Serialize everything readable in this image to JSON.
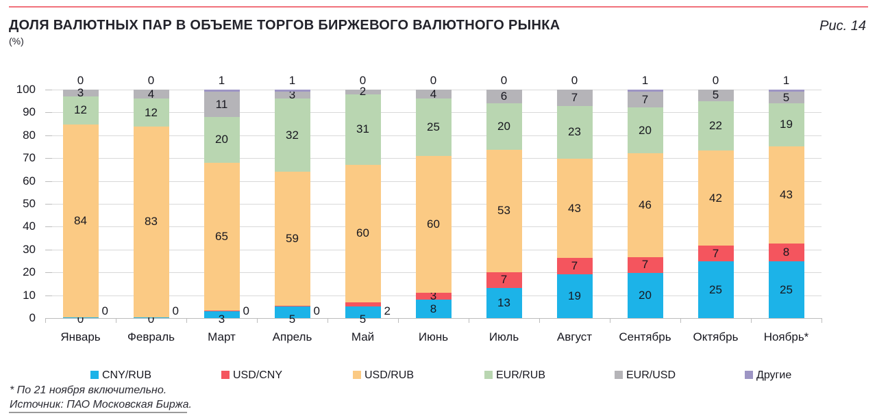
{
  "header": {
    "title": "ДОЛЯ ВАЛЮТНЫХ ПАР В ОБЪЕМЕ ТОРГОВ БИРЖЕВОГО ВАЛЮТНОГО РЫНКА",
    "unit": "(%)",
    "figure_label": "Рис. 14"
  },
  "chart_data": {
    "type": "bar",
    "subtype": "stacked",
    "title": "ДОЛЯ ВАЛЮТНЫХ ПАР В ОБЪЕМЕ ТОРГОВ БИРЖЕВОГО ВАЛЮТНОГО РЫНКА",
    "unit": "%",
    "grid": true,
    "legend_position": "bottom",
    "categories": [
      "Январь",
      "Февраль",
      "Март",
      "Апрель",
      "Май",
      "Июнь",
      "Июль",
      "Август",
      "Сентябрь",
      "Октябрь",
      "Ноябрь*"
    ],
    "series": [
      {
        "name": "CNY/RUB",
        "color": "#1cb3e8",
        "values": [
          0,
          0,
          3,
          5,
          5,
          8,
          13,
          19,
          20,
          25,
          25
        ]
      },
      {
        "name": "USD/CNY",
        "color": "#f4555e",
        "values": [
          0,
          0,
          0,
          0,
          2,
          3,
          7,
          7,
          7,
          7,
          8
        ]
      },
      {
        "name": "USD/RUB",
        "color": "#fbca84",
        "values": [
          84,
          83,
          65,
          59,
          60,
          60,
          53,
          43,
          46,
          42,
          43
        ]
      },
      {
        "name": "EUR/RUB",
        "color": "#b9d6b1",
        "values": [
          12,
          12,
          20,
          32,
          31,
          25,
          20,
          23,
          20,
          22,
          19
        ]
      },
      {
        "name": "EUR/USD",
        "color": "#b5b4b8",
        "values": [
          3,
          4,
          11,
          3,
          2,
          4,
          6,
          7,
          7,
          5,
          5
        ]
      },
      {
        "name": "Другие",
        "color": "#9d95c4",
        "values": [
          0,
          0,
          1,
          1,
          0,
          0,
          0,
          0,
          1,
          0,
          1
        ]
      }
    ],
    "y_axis": {
      "min": 0,
      "max": 100,
      "step": 10,
      "ticks": [
        "0",
        "10",
        "20",
        "30",
        "40",
        "50",
        "60",
        "70",
        "80",
        "90",
        "100"
      ]
    }
  },
  "footer": {
    "note": "* По 21 ноября включительно.",
    "source": "Источник: ПАО Московская Биржа."
  }
}
